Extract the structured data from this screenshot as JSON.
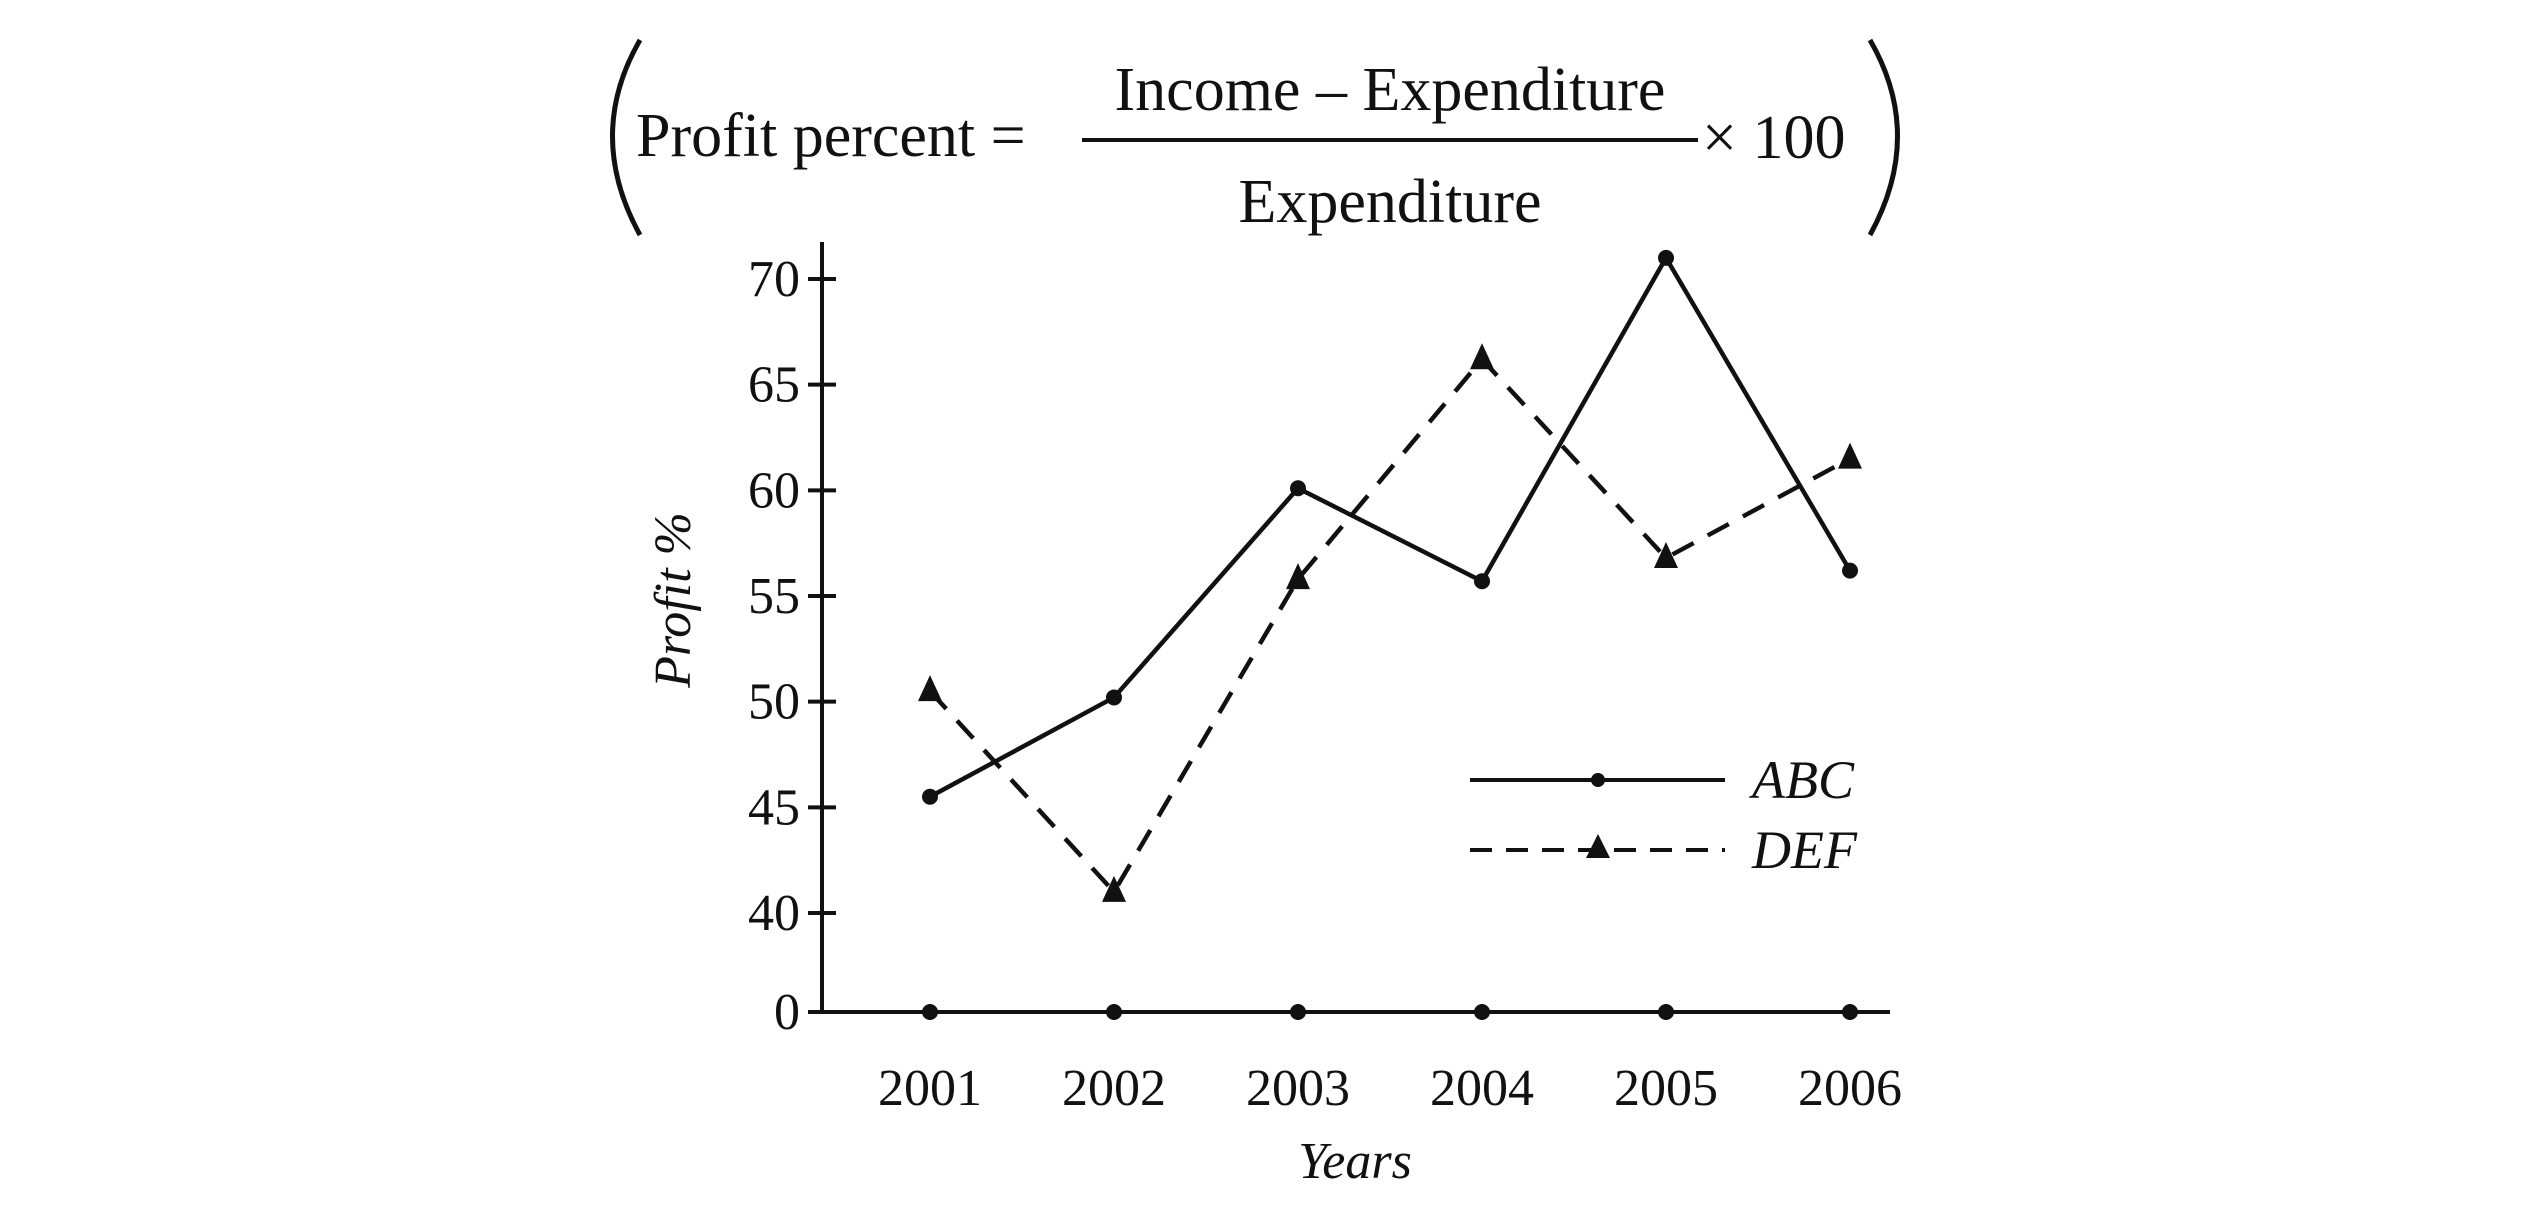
{
  "formula": {
    "lhs": "Profit percent =",
    "numerator": "Income – Expenditure",
    "denominator": "Expenditure",
    "multiplier": "× 100"
  },
  "chart_data": {
    "type": "line",
    "title": "",
    "xlabel": "Years",
    "ylabel": "Profit %",
    "categories": [
      "2001",
      "2002",
      "2003",
      "2004",
      "2005",
      "2006"
    ],
    "y_ticks": [
      0,
      40,
      45,
      50,
      55,
      60,
      65,
      70
    ],
    "ylim": [
      40,
      70
    ],
    "axis_break": "0 shown at base, axis jumps to 40",
    "legend_position": "right-middle",
    "grid": false,
    "series": [
      {
        "name": "ABC",
        "values": [
          45.5,
          50.2,
          60.1,
          55.7,
          71,
          56.2
        ],
        "style": "solid",
        "marker": "circle",
        "color": "#111111"
      },
      {
        "name": "DEF",
        "values": [
          50.5,
          41,
          55.8,
          66.2,
          56.8,
          61.5
        ],
        "style": "dashed",
        "marker": "triangle",
        "color": "#111111"
      }
    ]
  }
}
